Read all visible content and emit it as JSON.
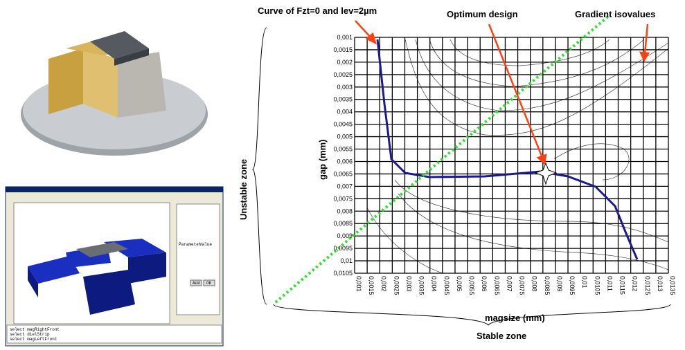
{
  "annotations": {
    "curve": "Curve of Fzt=0 and lev=2µm",
    "optimum": "Optimum design",
    "gradient": "Gradient isovalues",
    "unstable": "Unstable zone",
    "stable": "Stable zone"
  },
  "axes": {
    "y_label": "gap (mm)",
    "x_label": "magsize (mm)",
    "y_ticks": [
      "0,001",
      "0,0015",
      "0,002",
      "0,0025",
      "0,003",
      "0,0035",
      "0,004",
      "0,0045",
      "0,005",
      "0,0055",
      "0,006",
      "0,0065",
      "0,007",
      "0,0075",
      "0,008",
      "0,0085",
      "0,009",
      "0,0095",
      "0,01",
      "0,0105"
    ],
    "x_ticks": [
      "0,001",
      "0,0015",
      "0,002",
      "0,0025",
      "0,003",
      "0,0035",
      "0,004",
      "0,0045",
      "0,005",
      "0,0055",
      "0,006",
      "0,0065",
      "0,007",
      "0,0075",
      "0,008",
      "0,0085",
      "0,009",
      "0,0095",
      "0,01",
      "0,0105",
      "0,011",
      "0,0115",
      "0,012",
      "0,0125",
      "0,013",
      "0,0135"
    ]
  },
  "software": {
    "console": [
      "select magRightFront",
      "select dielStrip",
      "select magLeftFront"
    ],
    "table_headers": [
      "Parameter",
      "Value"
    ],
    "buttons": [
      "Add",
      "OK"
    ]
  }
}
